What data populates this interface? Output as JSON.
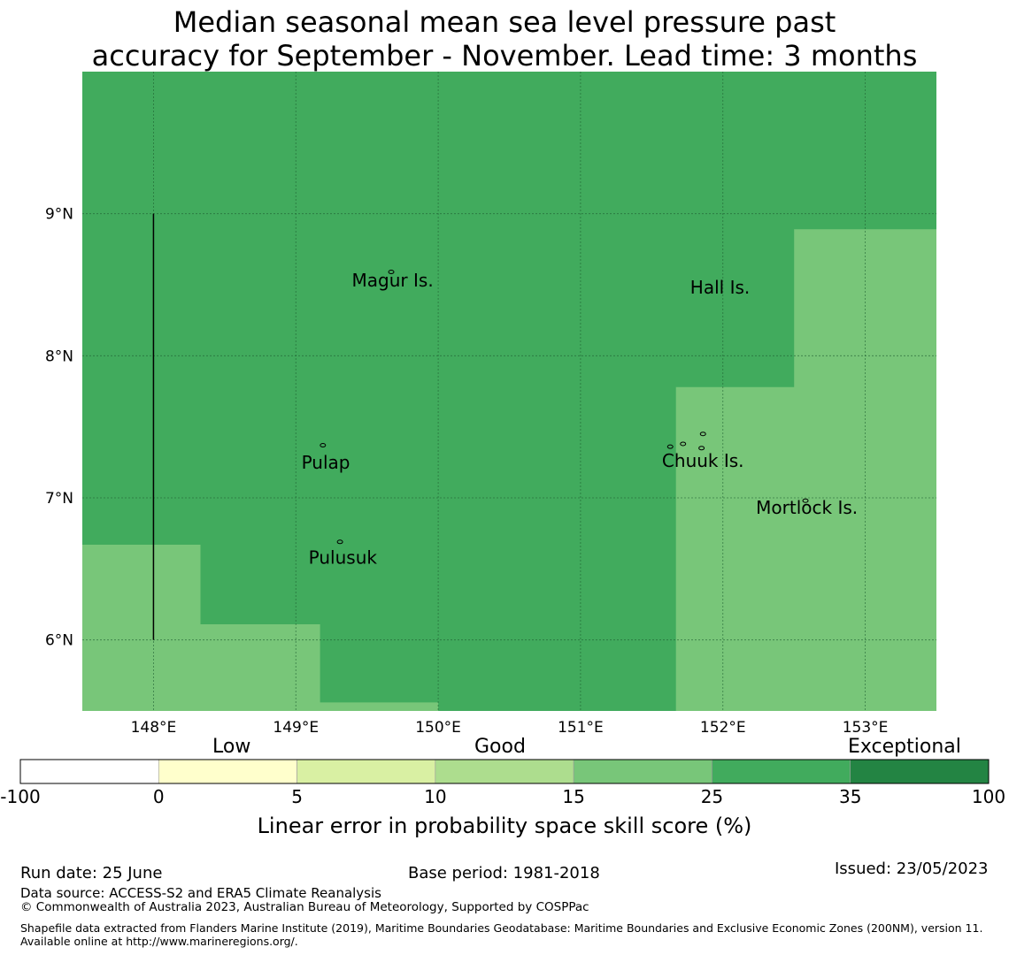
{
  "title": "Median seasonal mean sea level pressure past\naccuracy for September - November. Lead time: 3 months",
  "chart_data": {
    "type": "heatmap",
    "xlim": [
      147.5,
      153.5
    ],
    "ylim": [
      5.5,
      10.0
    ],
    "x_ticks": [
      148,
      149,
      150,
      151,
      152,
      153
    ],
    "x_tick_labels": [
      "148°E",
      "149°E",
      "150°E",
      "151°E",
      "152°E",
      "153°E"
    ],
    "y_ticks": [
      6,
      7,
      8,
      9
    ],
    "y_tick_labels": [
      "6°N",
      "7°N",
      "8°N",
      "9°N"
    ],
    "grid": true,
    "background_category": "25-35",
    "regions": [
      {
        "category": "15-25",
        "polygon": [
          [
            147.5,
            5.5
          ],
          [
            147.5,
            6.67
          ],
          [
            148.33,
            6.67
          ],
          [
            148.33,
            6.11
          ],
          [
            149.17,
            6.11
          ],
          [
            149.17,
            5.56
          ],
          [
            150.0,
            5.56
          ],
          [
            150.0,
            5.5
          ]
        ]
      },
      {
        "category": "15-25",
        "polygon": [
          [
            151.67,
            5.5
          ],
          [
            151.67,
            7.78
          ],
          [
            152.5,
            7.78
          ],
          [
            152.5,
            8.89
          ],
          [
            153.5,
            8.89
          ],
          [
            153.5,
            5.5
          ]
        ]
      }
    ],
    "boundary_line": {
      "lon": 148.0,
      "lat_range": [
        6.0,
        9.0
      ]
    },
    "places": [
      {
        "name": "Magur Is.",
        "lon": 149.68,
        "lat": 8.53
      },
      {
        "name": "Hall Is.",
        "lon": 151.98,
        "lat": 8.48
      },
      {
        "name": "Pulap",
        "lon": 149.21,
        "lat": 7.25
      },
      {
        "name": "Chuuk Is.",
        "lon": 151.86,
        "lat": 7.26
      },
      {
        "name": "Mortlock Is.",
        "lon": 152.59,
        "lat": 6.93
      },
      {
        "name": "Pulusuk",
        "lon": 149.33,
        "lat": 6.58
      }
    ],
    "islands": [
      {
        "lon": 149.67,
        "lat": 8.59
      },
      {
        "lon": 149.19,
        "lat": 7.37
      },
      {
        "lon": 149.31,
        "lat": 6.69
      },
      {
        "lon": 151.63,
        "lat": 7.36
      },
      {
        "lon": 151.72,
        "lat": 7.38
      },
      {
        "lon": 151.85,
        "lat": 7.35
      },
      {
        "lon": 151.86,
        "lat": 7.45
      },
      {
        "lon": 152.58,
        "lat": 6.98
      }
    ],
    "colorbar": {
      "bounds": [
        "-100",
        "0",
        "5",
        "10",
        "15",
        "25",
        "35",
        "100"
      ],
      "colors": [
        "#ffffff",
        "#ffffcc",
        "#d9f0a3",
        "#addd8e",
        "#78c679",
        "#41ab5d",
        "#238443"
      ],
      "category_labels": [
        "Low",
        "Good",
        "Exceptional"
      ],
      "label": "Linear error in probability space skill score (%)"
    },
    "category_colors": {
      "15-25": "#78c679",
      "25-35": "#41ab5d"
    }
  },
  "footer": {
    "run_date": "Run date: 25 June",
    "base_period": "Base period: 1981-2018",
    "issued": "Issued: 23/05/2023",
    "data_source": "Data source: ACCESS-S2 and ERA5 Climate Reanalysis",
    "copyright": "© Commonwealth of Australia 2023, Australian Bureau of Meteorology, Supported by COSPPac",
    "shapefile": "Shapefile data extracted from Flanders Marine Institute (2019), Maritime Boundaries Geodatabase: Maritime Boundaries and Exclusive Economic Zones (200NM), version 11. Available online at http://www.marineregions.org/."
  }
}
